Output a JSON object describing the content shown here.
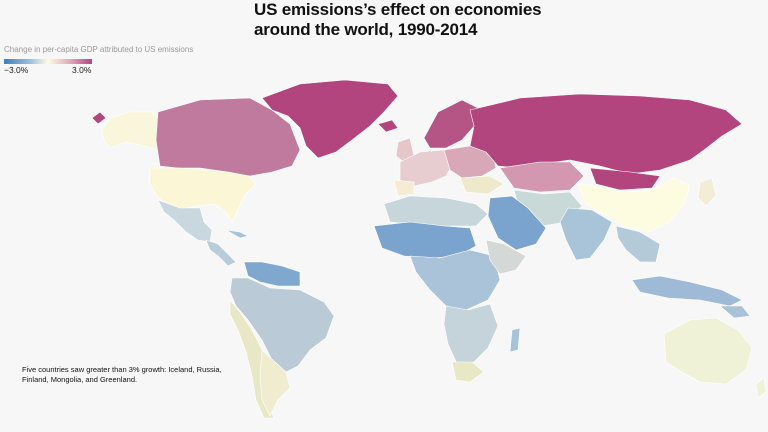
{
  "title": "US emissions’s effect on economies around the world, 1990-2014",
  "legend": {
    "caption": "Change in per-capita GDP attributed to US emissions",
    "min_label": "−3.0%",
    "max_label": "3.0%",
    "colors": {
      "negative": "#3d7fbe",
      "neutral": "#fffbe0",
      "positive": "#b2457e"
    }
  },
  "note": "Five countries saw greater than 3% growth: Iceland, Russia, Finland, Mongolia, and Greenland."
}
